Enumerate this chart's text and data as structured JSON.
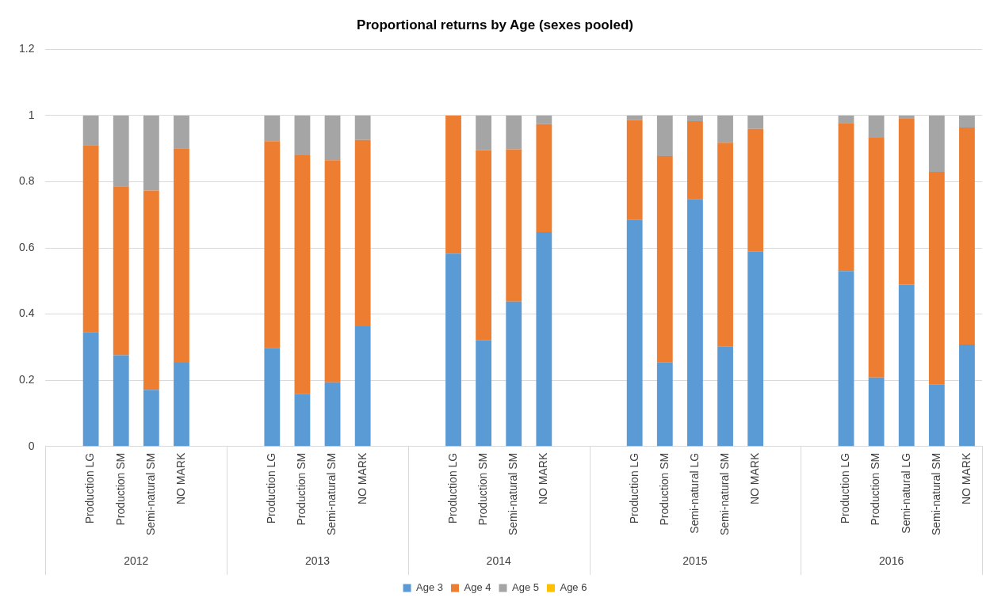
{
  "chart_data": {
    "type": "bar",
    "stacked": true,
    "title": "Proportional returns by Age (sexes pooled)",
    "categories": [
      null,
      "Production LG",
      "Production SM",
      "Semi-natural SM",
      "NO MARK",
      null,
      null,
      "Production LG",
      "Production SM",
      "Semi-natural SM",
      "NO MARK",
      null,
      null,
      "Production LG",
      "Production SM",
      "Semi-natural SM",
      "NO MARK",
      null,
      null,
      "Production LG",
      "Production SM",
      "Semi-natural LG",
      "Semi-natural SM",
      "NO MARK",
      null,
      null,
      "Production LG",
      "Production SM",
      "Semi-natural LG",
      "Semi-natural SM",
      "NO MARK"
    ],
    "annotations": [
      "2012",
      "2013",
      "2014",
      "2015",
      "2016"
    ],
    "series": [
      {
        "name": "Age 3",
        "color": "#5b9bd5",
        "values": [
          null,
          0.346,
          0.276,
          0.171,
          0.253,
          null,
          null,
          0.298,
          0.159,
          0.194,
          0.363,
          null,
          null,
          0.583,
          0.321,
          0.438,
          0.648,
          null,
          null,
          0.686,
          0.255,
          0.748,
          0.303,
          0.59,
          null,
          null,
          0.53,
          0.208,
          0.489,
          0.188,
          0.308
        ]
      },
      {
        "name": "Age 4",
        "color": "#ed7d31",
        "values": [
          null,
          0.565,
          0.51,
          0.603,
          0.648,
          null,
          null,
          0.625,
          0.721,
          0.671,
          0.563,
          null,
          null,
          0.417,
          0.575,
          0.46,
          0.326,
          null,
          null,
          0.3,
          0.623,
          0.235,
          0.615,
          0.37,
          null,
          null,
          0.448,
          0.725,
          0.503,
          0.642,
          0.656
        ]
      },
      {
        "name": "Age 5",
        "color": "#a5a5a5",
        "values": [
          null,
          0.089,
          0.214,
          0.226,
          0.099,
          null,
          null,
          0.077,
          0.12,
          0.135,
          0.074,
          null,
          null,
          0,
          0.104,
          0.102,
          0.026,
          null,
          null,
          0.014,
          0.122,
          0.017,
          0.082,
          0.04,
          null,
          null,
          0.022,
          0.067,
          0.008,
          0.17,
          0.036
        ]
      },
      {
        "name": "Age 6",
        "color": "#ffc000",
        "values": [
          null,
          0,
          0,
          0,
          0,
          null,
          null,
          0,
          0,
          0,
          0,
          null,
          null,
          0,
          0,
          0,
          0,
          null,
          null,
          0,
          0,
          0,
          0,
          0,
          null,
          null,
          0,
          0,
          0,
          0,
          0
        ]
      }
    ],
    "ylim": [
      0,
      1.2
    ],
    "yticks": [
      0,
      0.2,
      0.4,
      0.6,
      0.8,
      1,
      1.2
    ],
    "grid": "y",
    "legend": "bottom"
  }
}
